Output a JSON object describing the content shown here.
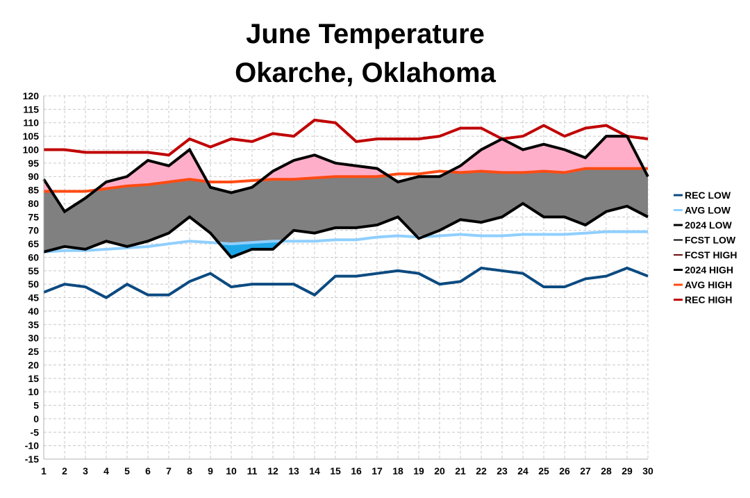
{
  "chart_data": {
    "type": "line",
    "title": "June Temperature",
    "subtitle": "Okarche, Oklahoma",
    "xlabel": "",
    "ylabel": "",
    "x": [
      1,
      2,
      3,
      4,
      5,
      6,
      7,
      8,
      9,
      10,
      11,
      12,
      13,
      14,
      15,
      16,
      17,
      18,
      19,
      20,
      21,
      22,
      23,
      24,
      25,
      26,
      27,
      28,
      29,
      30
    ],
    "ylim": [
      -15,
      120
    ],
    "ytick_step": 5,
    "grid": true,
    "legend_position": "right",
    "fills": [
      {
        "between": [
          "2024 LOW",
          "2024 HIGH"
        ],
        "color": "#808080"
      },
      {
        "above": "AVG HIGH",
        "of": "2024 HIGH",
        "color": "#ffaec9"
      },
      {
        "below": "AVG LOW",
        "of": "2024 LOW",
        "color": "#1ea7e8"
      }
    ],
    "series": [
      {
        "name": "REC LOW",
        "color": "#0b4a80",
        "width": 4,
        "values": [
          47,
          50,
          49,
          45,
          50,
          46,
          46,
          51,
          54,
          49,
          50,
          50,
          50,
          46,
          53,
          53,
          54,
          55,
          54,
          50,
          51,
          56,
          55,
          54,
          49,
          49,
          52,
          53,
          56,
          53
        ]
      },
      {
        "name": "AVG LOW",
        "color": "#8fcfff",
        "width": 4,
        "values": [
          62,
          62.5,
          62.5,
          63,
          63.5,
          64,
          65,
          66,
          65.5,
          65,
          65.5,
          66,
          66,
          66,
          66.5,
          66.5,
          67.5,
          68,
          67.5,
          68,
          68.5,
          68,
          68,
          68.5,
          68.5,
          68.5,
          69,
          69.5,
          69.5,
          69.5
        ]
      },
      {
        "name": "2024 LOW",
        "color": "#000000",
        "width": 4,
        "values": [
          62,
          64,
          63,
          66,
          64,
          66,
          69,
          75,
          69,
          60,
          63,
          63,
          70,
          69,
          71,
          71,
          72,
          75,
          67,
          70,
          74,
          73,
          75,
          80,
          75,
          75,
          72,
          77,
          79,
          75
        ]
      },
      {
        "name": "FCST LOW",
        "color": "#000000",
        "width": 1,
        "values": [
          null,
          null,
          null,
          null,
          null,
          null,
          null,
          null,
          null,
          null,
          null,
          null,
          null,
          null,
          null,
          null,
          null,
          null,
          null,
          null,
          null,
          null,
          null,
          null,
          null,
          null,
          null,
          null,
          null,
          null
        ]
      },
      {
        "name": "FCST HIGH",
        "color": "#6b0d0d",
        "width": 2,
        "values": [
          null,
          null,
          null,
          null,
          null,
          null,
          null,
          null,
          null,
          null,
          null,
          null,
          null,
          null,
          null,
          null,
          null,
          null,
          null,
          null,
          null,
          null,
          null,
          null,
          null,
          null,
          null,
          null,
          null,
          null
        ]
      },
      {
        "name": "2024 HIGH",
        "color": "#000000",
        "width": 4,
        "values": [
          89,
          77,
          82,
          88,
          90,
          96,
          94,
          100,
          86,
          84,
          86,
          92,
          96,
          98,
          95,
          94,
          93,
          88,
          90,
          90,
          94,
          100,
          104,
          100,
          102,
          100,
          97,
          105,
          105,
          90
        ]
      },
      {
        "name": "AVG HIGH",
        "color": "#ff4b13",
        "width": 4,
        "values": [
          84.5,
          84.5,
          84.5,
          85.5,
          86.5,
          87,
          88,
          89,
          88,
          88,
          88.5,
          89,
          89,
          89.5,
          90,
          90,
          90,
          91,
          91,
          92,
          91.5,
          92,
          91.5,
          91.5,
          92,
          91.5,
          93,
          93,
          93,
          93
        ]
      },
      {
        "name": "REC HIGH",
        "color": "#c00000",
        "width": 4,
        "values": [
          100,
          100,
          99,
          99,
          99,
          99,
          98,
          104,
          101,
          104,
          103,
          106,
          105,
          111,
          110,
          103,
          104,
          104,
          104,
          105,
          108,
          108,
          104,
          105,
          109,
          105,
          108,
          109,
          105,
          104
        ]
      }
    ]
  }
}
